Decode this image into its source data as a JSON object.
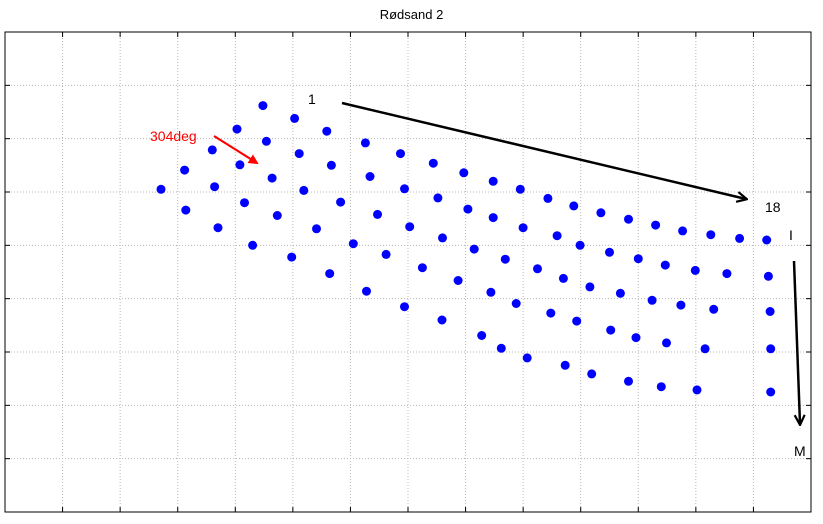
{
  "chart_data": {
    "type": "scatter",
    "title": "Rødsand 2",
    "xlabel": "",
    "ylabel": "",
    "grid": true,
    "tick_labels_visible": false,
    "xlim": [
      0,
      14
    ],
    "ylim": [
      0,
      9
    ],
    "marker_color": "#0000ff",
    "grid_color": "#b8b8b8",
    "points": [
      [
        4.48,
        7.62
      ],
      [
        4.03,
        7.18
      ],
      [
        3.6,
        6.79
      ],
      [
        3.12,
        6.41
      ],
      [
        2.71,
        6.05
      ],
      [
        5.03,
        7.38
      ],
      [
        4.54,
        6.95
      ],
      [
        4.08,
        6.51
      ],
      [
        3.64,
        6.1
      ],
      [
        3.14,
        5.66
      ],
      [
        5.59,
        7.14
      ],
      [
        5.11,
        6.72
      ],
      [
        4.64,
        6.26
      ],
      [
        4.16,
        5.8
      ],
      [
        3.7,
        5.33
      ],
      [
        6.26,
        6.92
      ],
      [
        5.67,
        6.5
      ],
      [
        5.19,
        6.03
      ],
      [
        4.73,
        5.56
      ],
      [
        4.3,
        5.0
      ],
      [
        6.87,
        6.72
      ],
      [
        6.34,
        6.29
      ],
      [
        5.83,
        5.81
      ],
      [
        5.41,
        5.31
      ],
      [
        4.98,
        4.78
      ],
      [
        7.44,
        6.54
      ],
      [
        6.94,
        6.06
      ],
      [
        6.47,
        5.58
      ],
      [
        6.05,
        5.03
      ],
      [
        5.64,
        4.47
      ],
      [
        7.97,
        6.36
      ],
      [
        7.52,
        5.89
      ],
      [
        7.03,
        5.35
      ],
      [
        6.62,
        4.83
      ],
      [
        6.28,
        4.14
      ],
      [
        8.48,
        6.2
      ],
      [
        8.04,
        5.68
      ],
      [
        7.6,
        5.14
      ],
      [
        7.25,
        4.58
      ],
      [
        6.94,
        3.85
      ],
      [
        8.95,
        6.05
      ],
      [
        8.48,
        5.52
      ],
      [
        8.15,
        4.93
      ],
      [
        7.87,
        4.34
      ],
      [
        7.59,
        3.6
      ],
      [
        9.43,
        5.88
      ],
      [
        9.0,
        5.33
      ],
      [
        8.69,
        4.74
      ],
      [
        8.44,
        4.12
      ],
      [
        8.28,
        3.31
      ],
      [
        9.88,
        5.74
      ],
      [
        9.59,
        5.18
      ],
      [
        9.25,
        4.56
      ],
      [
        8.88,
        3.91
      ],
      [
        8.62,
        3.07
      ],
      [
        10.35,
        5.61
      ],
      [
        9.99,
        5.0
      ],
      [
        9.7,
        4.38
      ],
      [
        9.48,
        3.73
      ],
      [
        9.07,
        2.89
      ],
      [
        10.83,
        5.49
      ],
      [
        10.5,
        4.87
      ],
      [
        10.16,
        4.22
      ],
      [
        9.93,
        3.58
      ],
      [
        9.73,
        2.75
      ],
      [
        11.3,
        5.38
      ],
      [
        11.0,
        4.75
      ],
      [
        10.69,
        4.1
      ],
      [
        10.52,
        3.41
      ],
      [
        10.19,
        2.59
      ],
      [
        11.77,
        5.27
      ],
      [
        11.47,
        4.63
      ],
      [
        11.24,
        3.97
      ],
      [
        10.96,
        3.27
      ],
      [
        10.83,
        2.45
      ],
      [
        12.26,
        5.2
      ],
      [
        11.99,
        4.53
      ],
      [
        11.74,
        3.88
      ],
      [
        11.49,
        3.17
      ],
      [
        11.4,
        2.35
      ],
      [
        12.76,
        5.13
      ],
      [
        12.54,
        4.47
      ],
      [
        12.31,
        3.8
      ],
      [
        12.16,
        3.06
      ],
      [
        12.02,
        2.29
      ],
      [
        13.23,
        5.1
      ],
      [
        13.26,
        4.42
      ],
      [
        13.29,
        3.76
      ],
      [
        13.3,
        3.06
      ],
      [
        13.3,
        2.25
      ]
    ]
  },
  "annotations": {
    "label_start": "1",
    "label_end_col": "18",
    "label_row_first": "I",
    "label_row_last": "M",
    "label_heading": "304deg",
    "heading_color": "#ff0000",
    "arrow_color": "#000000"
  }
}
